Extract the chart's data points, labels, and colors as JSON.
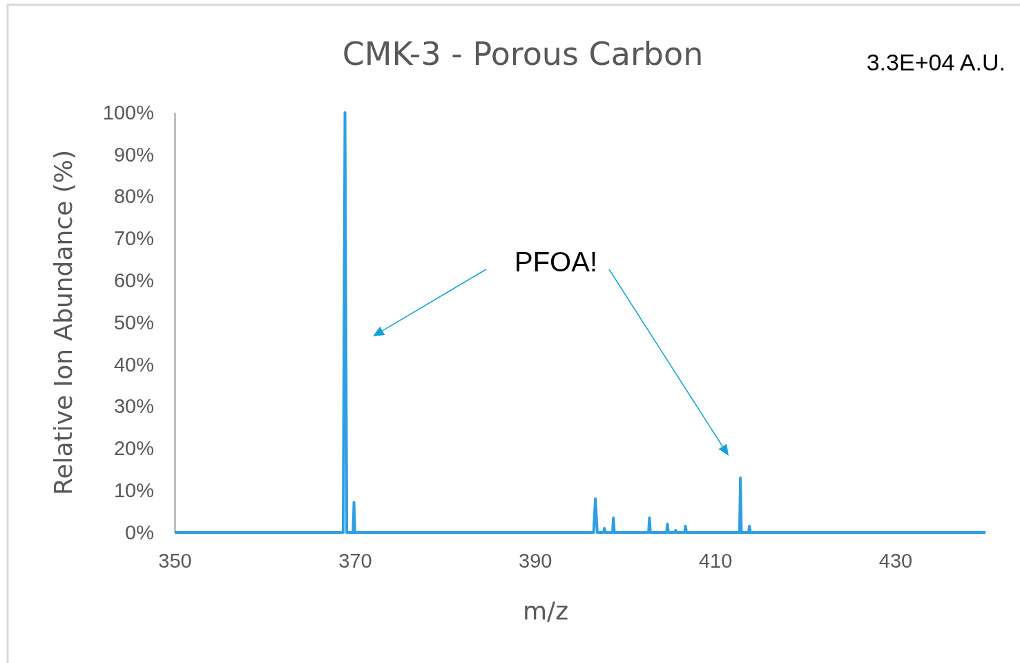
{
  "chart_data": {
    "type": "line",
    "title": "CMK-3 - Porous Carbon",
    "xlabel": "m/z",
    "ylabel": "Relative Ion Abundance (%)",
    "annotations": [
      "PFOA!",
      "3.3E+04 A.U."
    ],
    "xlim": [
      350,
      440
    ],
    "xticks": [
      350,
      370,
      390,
      410,
      430
    ],
    "ylim": [
      0,
      100
    ],
    "yticks": [
      {
        "value": 0,
        "label": "0%"
      },
      {
        "value": 10,
        "label": "10%"
      },
      {
        "value": 20,
        "label": "20%"
      },
      {
        "value": 30,
        "label": "30%"
      },
      {
        "value": 40,
        "label": "40%"
      },
      {
        "value": 50,
        "label": "50%"
      },
      {
        "value": 60,
        "label": "60%"
      },
      {
        "value": 70,
        "label": "70%"
      },
      {
        "value": 80,
        "label": "80%"
      },
      {
        "value": 90,
        "label": "90%"
      },
      {
        "value": 100,
        "label": "100%"
      }
    ],
    "series": [
      {
        "color": "#2e9fe6",
        "x": [
          350,
          368.7,
          368.9,
          369.1,
          369.8,
          369.9,
          370.0,
          396.5,
          396.7,
          396.9,
          397.6,
          397.7,
          397.8,
          398.6,
          398.7,
          398.8,
          402.6,
          402.7,
          402.8,
          404.6,
          404.7,
          404.8,
          405.5,
          405.6,
          405.7,
          406.6,
          406.7,
          406.8,
          412.7,
          412.8,
          412.9,
          413.7,
          413.8,
          413.9,
          440
        ],
        "values": [
          0,
          0,
          100,
          0,
          0,
          7.2,
          0,
          0,
          8,
          0,
          0,
          1,
          0,
          0,
          3.5,
          0,
          0,
          3.5,
          0,
          0,
          2,
          0,
          0,
          0.5,
          0,
          0,
          1.5,
          0,
          0,
          13,
          0,
          0,
          1.5,
          0,
          0
        ]
      }
    ]
  }
}
